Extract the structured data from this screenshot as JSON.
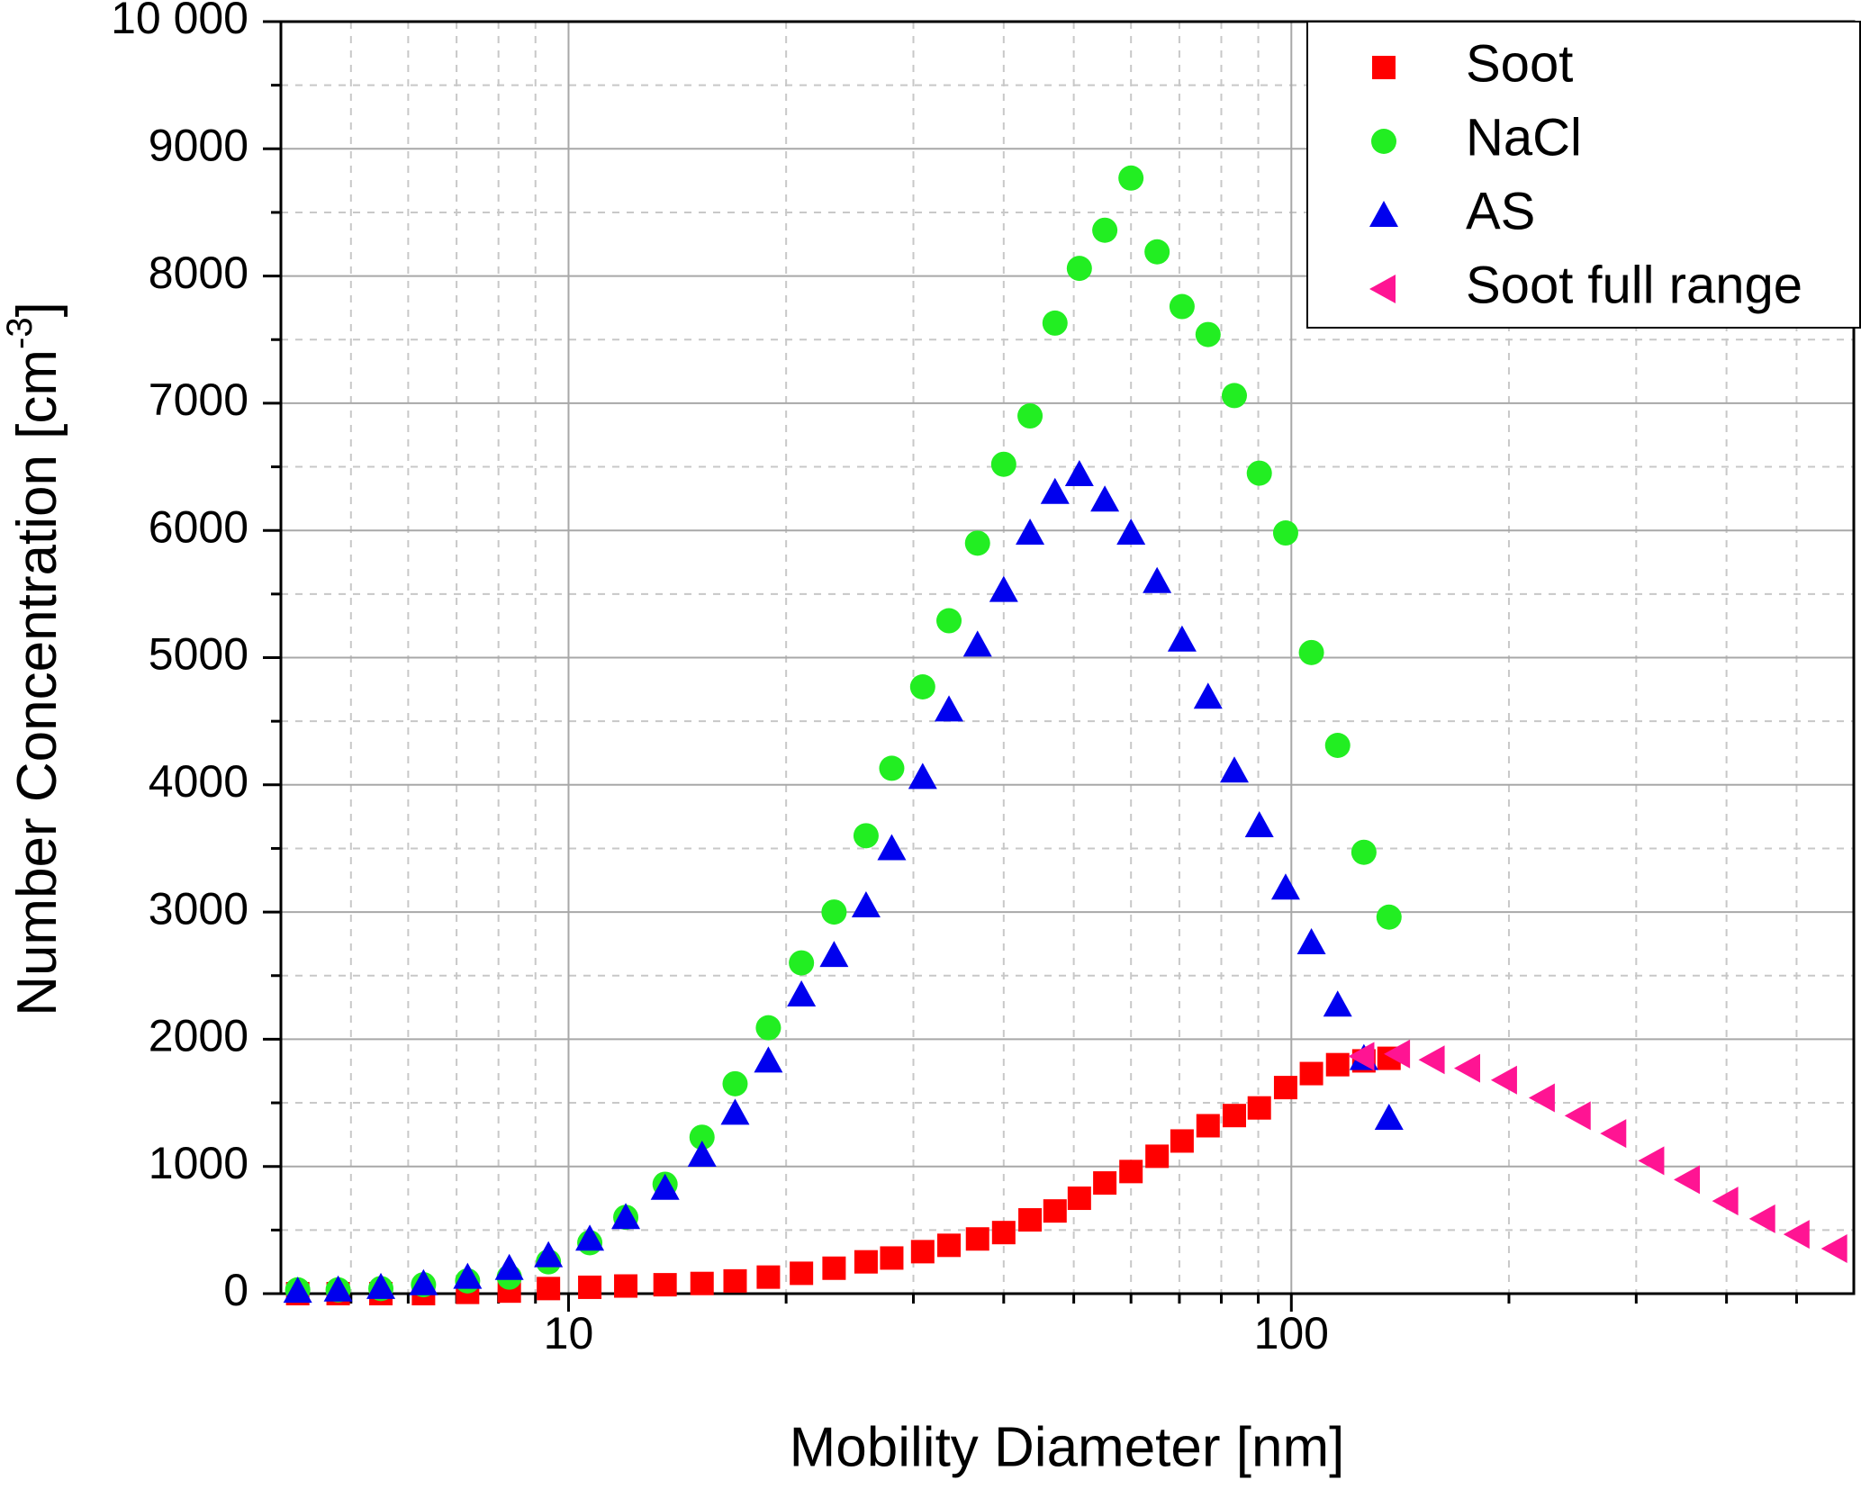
{
  "chart_data": {
    "type": "scatter",
    "x_label": "Mobility Diameter [nm]",
    "y_label": [
      "Number Concentration [cm",
      "-3",
      "]"
    ],
    "xscale": "log",
    "xlim": [
      4,
      600
    ],
    "ylim": [
      0,
      10000
    ],
    "xticks": [
      10,
      100
    ],
    "minor_xticks": [
      5,
      6,
      7,
      8,
      9,
      20,
      30,
      40,
      50,
      60,
      70,
      80,
      90,
      200,
      300,
      400,
      500
    ],
    "yticks": [
      0,
      1000,
      2000,
      3000,
      4000,
      5000,
      6000,
      7000,
      8000,
      9000,
      {
        "value": 10000,
        "label": "10 000"
      }
    ],
    "minor_yticks": [
      500,
      1500,
      2500,
      3500,
      4500,
      5500,
      6500,
      7500,
      8500,
      9500
    ],
    "grid": true,
    "legend": "upper right",
    "series": [
      {
        "name": "Soot",
        "color": "#ff0000",
        "marker": "square",
        "x": [
          4.22,
          4.8,
          5.5,
          6.3,
          7.25,
          8.28,
          9.38,
          10.7,
          12.0,
          13.6,
          15.3,
          17.0,
          18.9,
          21.0,
          23.3,
          25.8,
          28.0,
          30.9,
          33.6,
          36.8,
          40.0,
          43.5,
          47.1,
          50.9,
          55.2,
          60.0,
          65.2,
          70.6,
          76.7,
          83.4,
          90.3,
          98.2,
          106.6,
          115.9,
          126.0,
          136.5
        ],
        "values": [
          0,
          0,
          0,
          0,
          10,
          20,
          40,
          50,
          60,
          70,
          80,
          100,
          130,
          160,
          200,
          250,
          280,
          330,
          380,
          430,
          480,
          580,
          650,
          750,
          870,
          960,
          1080,
          1200,
          1320,
          1400,
          1460,
          1620,
          1730,
          1800,
          1830,
          1850
        ]
      },
      {
        "name": "NaCl",
        "color": "#22ee22",
        "marker": "circle",
        "x": [
          4.22,
          4.8,
          5.5,
          6.3,
          7.25,
          8.28,
          9.38,
          10.7,
          12.0,
          13.6,
          15.3,
          17.0,
          18.9,
          21.0,
          23.3,
          25.8,
          28.0,
          30.9,
          33.6,
          36.8,
          40.0,
          43.5,
          47.1,
          50.9,
          55.2,
          60.0,
          65.2,
          70.6,
          76.7,
          83.4,
          90.3,
          98.2,
          106.6,
          115.9,
          126.0,
          136.5
        ],
        "values": [
          30,
          30,
          40,
          70,
          100,
          130,
          250,
          400,
          600,
          860,
          1230,
          1650,
          2090,
          2600,
          3000,
          3600,
          4130,
          4770,
          5290,
          5900,
          6520,
          6900,
          7630,
          8060,
          8360,
          8770,
          8190,
          7760,
          7540,
          7060,
          6450,
          5980,
          5040,
          4310,
          3470,
          2960
        ]
      },
      {
        "name": "AS",
        "color": "#0000ee",
        "marker": "triangle-up",
        "x": [
          4.22,
          4.8,
          5.5,
          6.3,
          7.25,
          8.28,
          9.38,
          10.7,
          12.0,
          13.6,
          15.3,
          17.0,
          18.9,
          21.0,
          23.3,
          25.8,
          28.0,
          30.9,
          33.6,
          36.8,
          40.0,
          43.5,
          47.1,
          50.9,
          55.2,
          60.0,
          65.2,
          70.6,
          76.7,
          83.4,
          90.3,
          98.2,
          106.6,
          115.9,
          126.0,
          136.5
        ],
        "values": [
          20,
          30,
          50,
          80,
          130,
          200,
          300,
          430,
          600,
          830,
          1090,
          1420,
          1830,
          2350,
          2660,
          3050,
          3500,
          4060,
          4590,
          5100,
          5530,
          5980,
          6300,
          6440,
          6240,
          5980,
          5600,
          5140,
          4690,
          4110,
          3680,
          3190,
          2760,
          2270,
          1850,
          1380
        ]
      },
      {
        "name": "Soot full range",
        "color": "#ff1493",
        "marker": "triangle-left",
        "x": [
          125.5,
          140.6,
          157,
          175.8,
          197.7,
          223,
          250,
          280,
          316,
          354,
          400,
          450,
          502,
          566
        ],
        "values": [
          1866,
          1884,
          1838,
          1772,
          1679,
          1539,
          1399,
          1259,
          1045,
          896,
          728,
          588,
          466,
          354
        ]
      }
    ]
  }
}
